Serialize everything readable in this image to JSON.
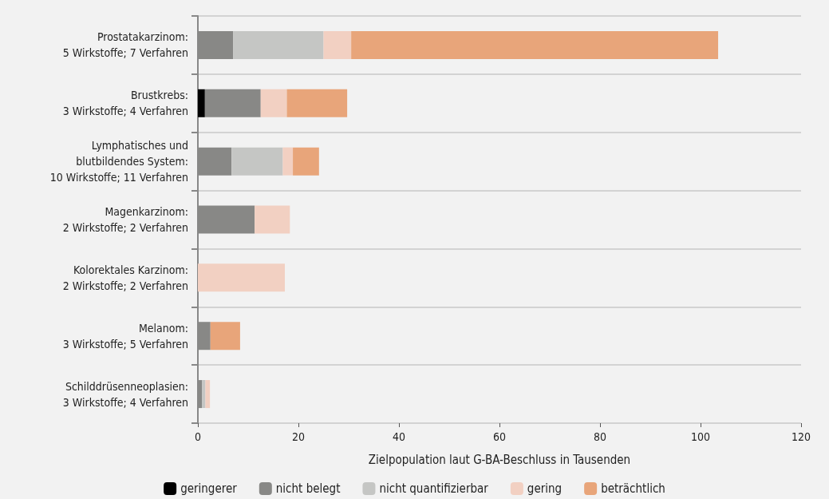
{
  "chart_data": {
    "type": "bar",
    "orientation": "horizontal",
    "stacked": true,
    "xlabel": "Zielpopulation laut G-BA-Beschluss in Tausenden",
    "categories": [
      "Prostatakarzinom:\n5 Wirkstoffe; 7 Verfahren",
      "Brustkrebs:\n3 Wirkstoffe; 4 Verfahren",
      "Lymphatisches und\nblutbildendes System:\n10 Wirkstoffe; 11 Verfahren",
      "Magenkarzinom:\n2 Wirkstoffe; 2 Verfahren",
      "Kolorektales Karzinom:\n2 Wirkstoffe; 2 Verfahren",
      "Melanom:\n3 Wirkstoffe; 5 Verfahren",
      "Schilddrüsenneoplasien:\n3 Wirkstoffe; 4 Verfahren"
    ],
    "series": [
      {
        "name": "geringerer",
        "color": "#000000",
        "values": [
          0,
          1.4,
          0,
          0,
          0,
          0,
          0
        ]
      },
      {
        "name": "nicht belegt",
        "color": "#888886",
        "values": [
          7.0,
          11.1,
          6.7,
          11.3,
          0,
          2.5,
          0.8
        ]
      },
      {
        "name": "nicht quantifizierbar",
        "color": "#c5c6c4",
        "values": [
          18.0,
          0,
          10.2,
          0,
          0,
          0,
          0.7
        ]
      },
      {
        "name": "gering",
        "color": "#f2d0c2",
        "values": [
          5.5,
          5.2,
          2.0,
          7.0,
          17.3,
          0,
          0.9
        ]
      },
      {
        "name": "beträchtlich",
        "color": "#e8a57a",
        "values": [
          73.0,
          12.0,
          5.2,
          0,
          0,
          5.9,
          0
        ]
      }
    ],
    "xlim": [
      0,
      120
    ],
    "xticks": [
      0,
      20,
      40,
      60,
      80,
      100,
      120
    ],
    "grid": "y",
    "legend": "bottom"
  }
}
